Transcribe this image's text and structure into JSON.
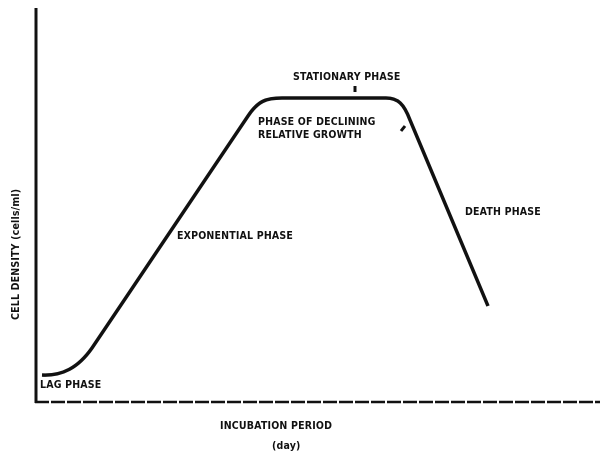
{
  "axes": {
    "x_label": "INCUBATION PERIOD",
    "x_unit": "(day)",
    "y_label": "CELL DENSITY (cells/ml)"
  },
  "phases": {
    "lag": "LAG PHASE",
    "exponential": "EXPONENTIAL PHASE",
    "declining": "PHASE OF DECLINING",
    "declining_2": "RELATIVE GROWTH",
    "stationary": "STATIONARY PHASE",
    "death": "DEATH PHASE"
  },
  "colors": {
    "ink": "#111111",
    "background": "#ffffff"
  }
}
